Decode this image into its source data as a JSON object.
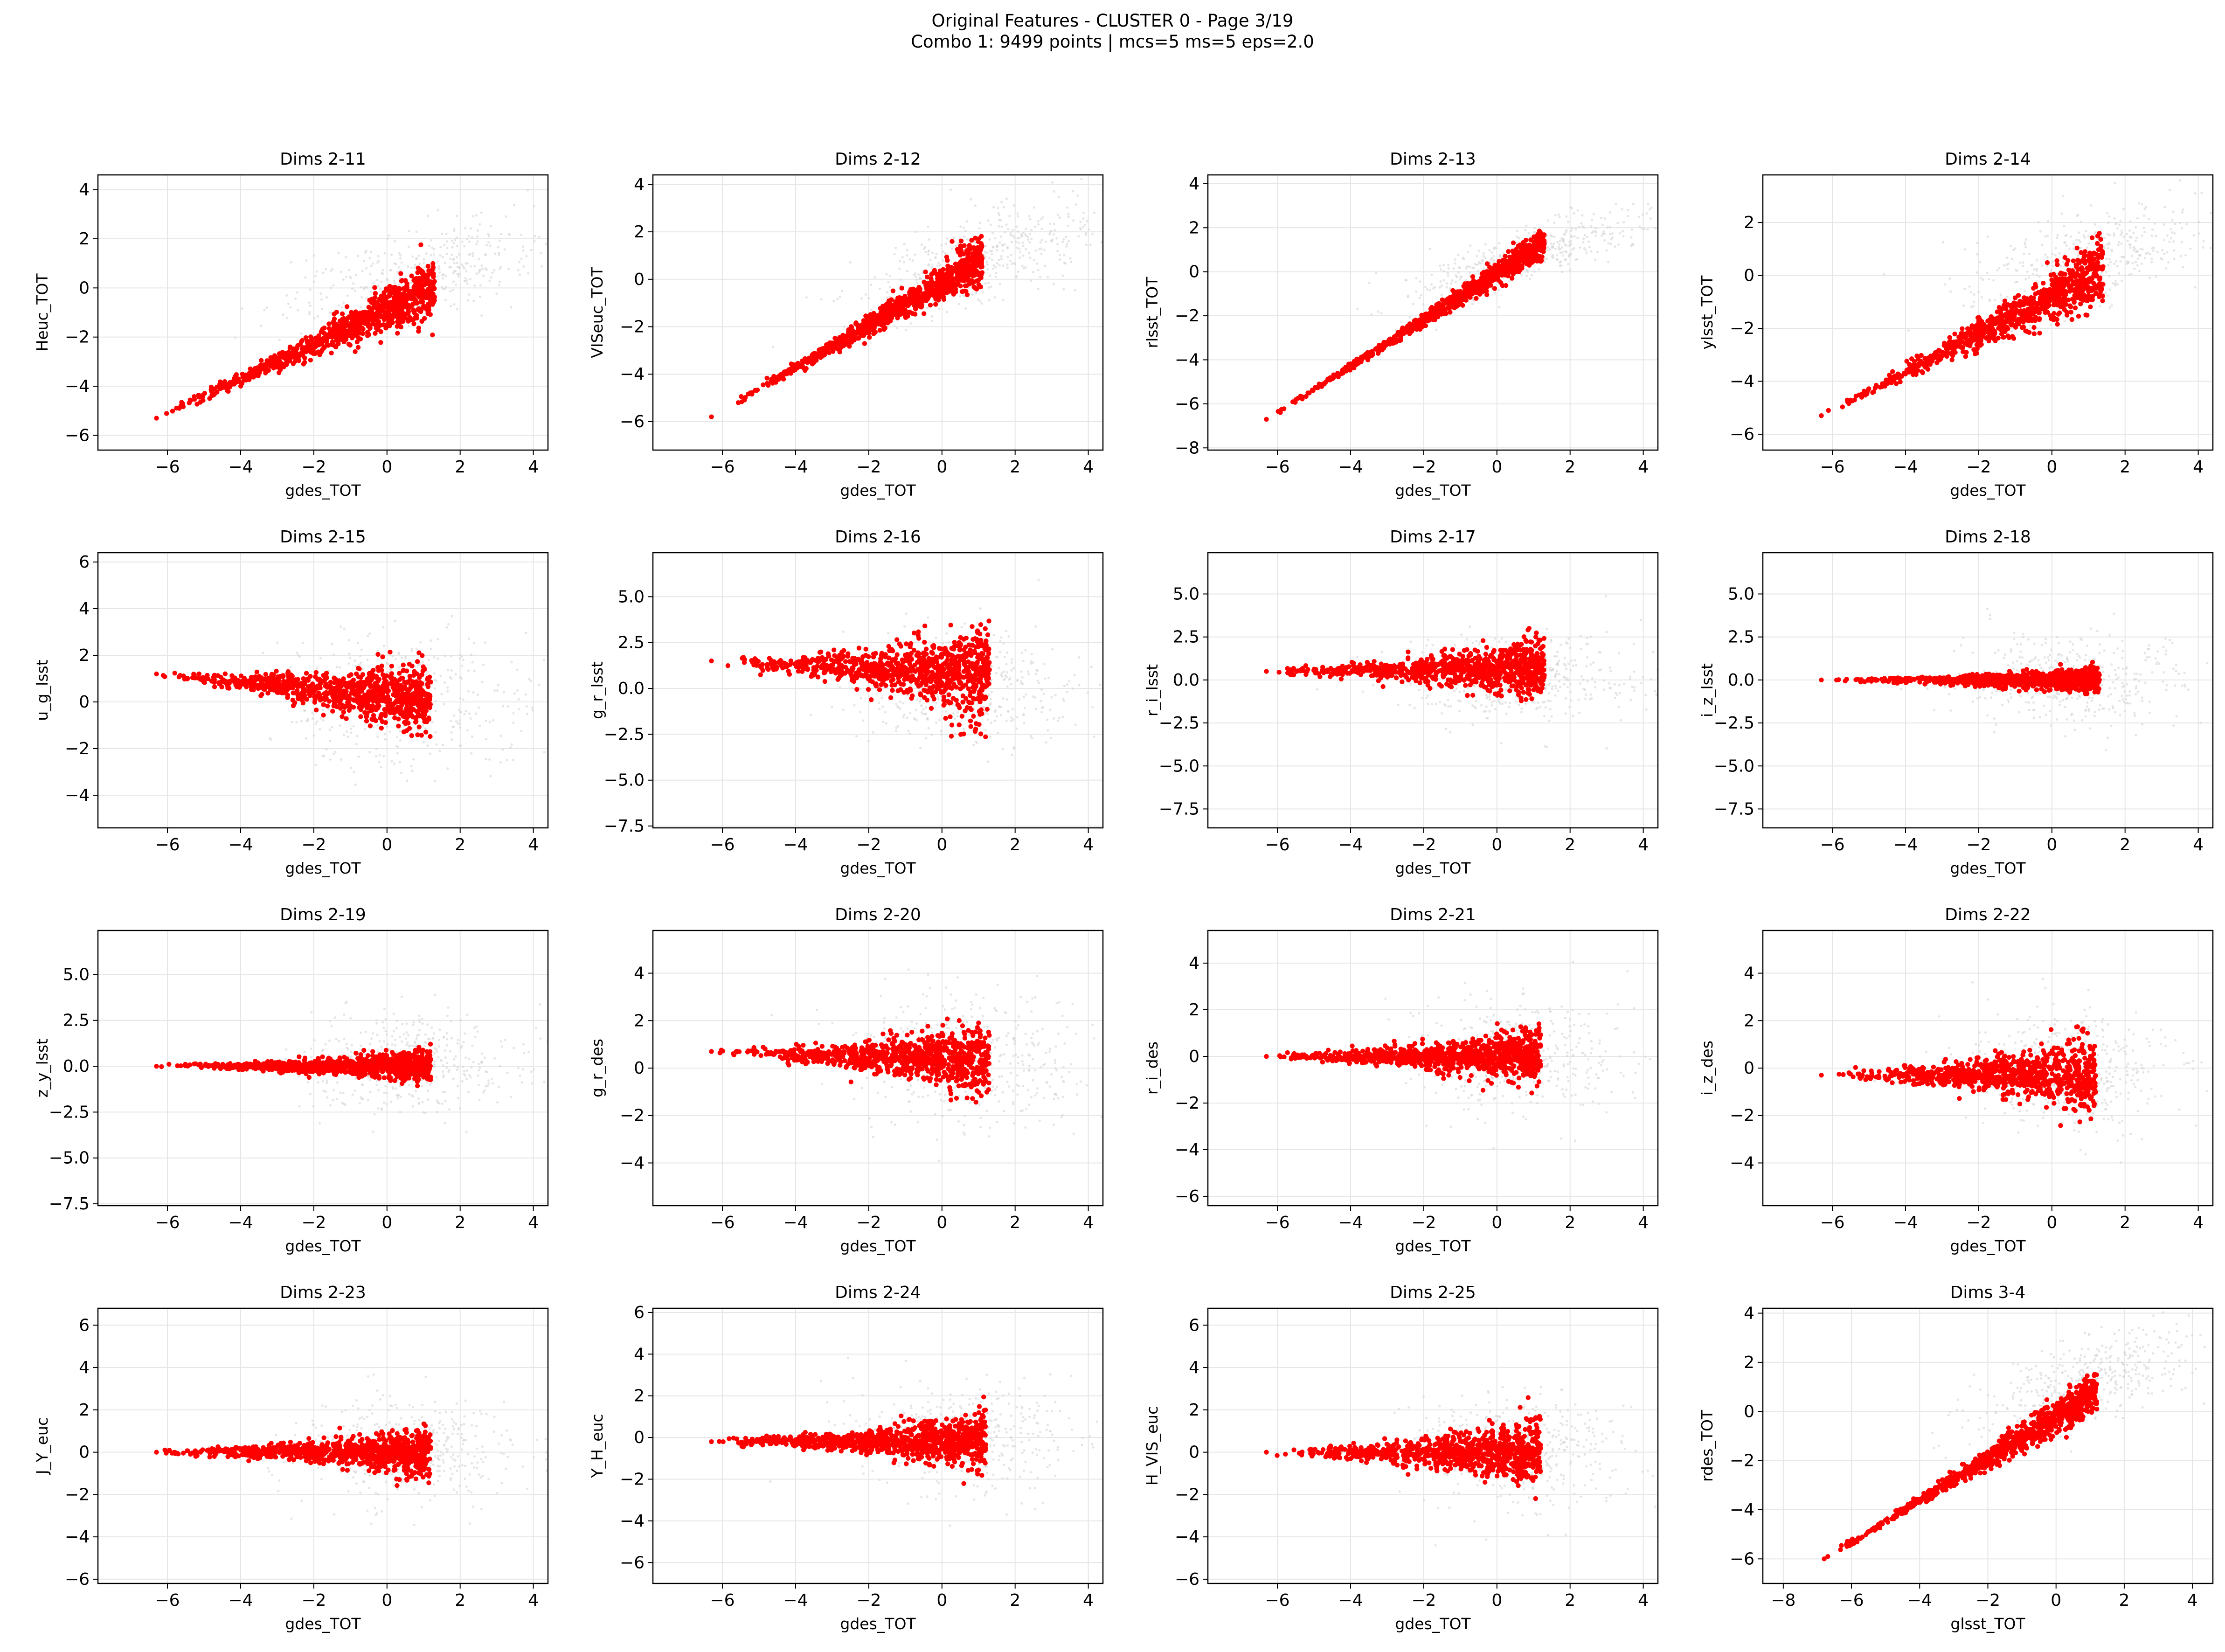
{
  "figure": {
    "title_line1": "Original Features - CLUSTER 0 - Page 3/19",
    "title_line2": "Combo 1: 9499 points | mcs=5 ms=5 eps=2.0"
  },
  "colors": {
    "cluster": "#ff0000",
    "background_points": "#d3d3d3",
    "grid": "#e6e6e6",
    "axes": "#000000"
  },
  "chart_data": [
    {
      "type": "scatter",
      "title": "Dims 2-11",
      "xlabel": "gdes_TOT",
      "ylabel": "Heuc_TOT",
      "xlim": [
        -7.9,
        4.4
      ],
      "ylim": [
        -6.6,
        4.6
      ],
      "xticks": [
        "-6",
        "-4",
        "-2",
        "0",
        "2",
        "4"
      ],
      "yticks": [
        "-6",
        "-4",
        "-2",
        "0",
        "2",
        "4"
      ],
      "cluster": {
        "lead": [
          -6.3,
          -5.3
        ],
        "slope": 0.7,
        "spread": 0.55,
        "x_end": 1.3
      },
      "background": {
        "x_center": 0.8,
        "y_center": 0.5,
        "x_spread": 1.8,
        "y_spread": 0.9
      }
    },
    {
      "type": "scatter",
      "title": "Dims 2-12",
      "xlabel": "gdes_TOT",
      "ylabel": "VISeuc_TOT",
      "xlim": [
        -7.9,
        4.4
      ],
      "ylim": [
        -7.2,
        4.4
      ],
      "xticks": [
        "-6",
        "-4",
        "-2",
        "0",
        "2",
        "4"
      ],
      "yticks": [
        "-6",
        "-4",
        "-2",
        "0",
        "2",
        "4"
      ],
      "cluster": {
        "lead": [
          -6.3,
          -5.8
        ],
        "slope": 0.9,
        "spread": 0.45,
        "x_end": 1.1
      },
      "background": {
        "x_center": 1.0,
        "y_center": 0.8,
        "x_spread": 1.7,
        "y_spread": 0.9
      }
    },
    {
      "type": "scatter",
      "title": "Dims 2-13",
      "xlabel": "gdes_TOT",
      "ylabel": "rlsst_TOT",
      "xlim": [
        -7.9,
        4.4
      ],
      "ylim": [
        -8.1,
        4.4
      ],
      "xticks": [
        "-6",
        "-4",
        "-2",
        "0",
        "2",
        "4"
      ],
      "yticks": [
        "-8",
        "-6",
        "-4",
        "-2",
        "0",
        "2",
        "4"
      ],
      "cluster": {
        "lead": [
          -6.3,
          -6.7
        ],
        "slope": 1.05,
        "spread": 0.3,
        "x_end": 1.3
      },
      "background": {
        "x_center": 0.9,
        "y_center": 0.8,
        "x_spread": 1.7,
        "y_spread": 0.6
      }
    },
    {
      "type": "scatter",
      "title": "Dims 2-14",
      "xlabel": "gdes_TOT",
      "ylabel": "ylsst_TOT",
      "xlim": [
        -7.9,
        4.4
      ],
      "ylim": [
        -6.6,
        3.8
      ],
      "xticks": [
        "-6",
        "-4",
        "-2",
        "0",
        "2",
        "4"
      ],
      "yticks": [
        "-6",
        "-4",
        "-2",
        "0",
        "2"
      ],
      "cluster": {
        "lead": [
          -6.3,
          -5.3
        ],
        "slope": 0.72,
        "spread": 0.55,
        "x_end": 1.4
      },
      "background": {
        "x_center": 1.0,
        "y_center": 0.6,
        "x_spread": 1.8,
        "y_spread": 0.9
      }
    },
    {
      "type": "scatter",
      "title": "Dims 2-15",
      "xlabel": "gdes_TOT",
      "ylabel": "u_g_lsst",
      "xlim": [
        -7.9,
        4.4
      ],
      "ylim": [
        -5.4,
        6.4
      ],
      "xticks": [
        "-6",
        "-4",
        "-2",
        "0",
        "2",
        "4"
      ],
      "yticks": [
        "-4",
        "-2",
        "0",
        "2",
        "4",
        "6"
      ],
      "cluster": {
        "lead": [
          -6.3,
          1.2
        ],
        "slope": -0.15,
        "spread": 0.7,
        "x_end": 1.2
      },
      "background": {
        "x_center": 0.4,
        "y_center": 0.0,
        "x_spread": 1.6,
        "y_spread": 1.5
      }
    },
    {
      "type": "scatter",
      "title": "Dims 2-16",
      "xlabel": "gdes_TOT",
      "ylabel": "g_r_lsst",
      "xlim": [
        -7.9,
        4.4
      ],
      "ylim": [
        -7.6,
        7.4
      ],
      "xticks": [
        "-6",
        "-4",
        "-2",
        "0",
        "2",
        "4"
      ],
      "yticks": [
        "-7.5",
        "-5.0",
        "-2.5",
        "0.0",
        "2.5",
        "5.0"
      ],
      "cluster": {
        "lead": [
          -6.3,
          1.5
        ],
        "slope": -0.1,
        "spread": 1.1,
        "x_end": 1.3
      },
      "background": {
        "x_center": 0.6,
        "y_center": 0.0,
        "x_spread": 1.6,
        "y_spread": 1.5
      }
    },
    {
      "type": "scatter",
      "title": "Dims 2-17",
      "xlabel": "gdes_TOT",
      "ylabel": "r_i_lsst",
      "xlim": [
        -7.9,
        4.4
      ],
      "ylim": [
        -8.6,
        7.4
      ],
      "xticks": [
        "-6",
        "-4",
        "-2",
        "0",
        "2",
        "4"
      ],
      "yticks": [
        "-7.5",
        "-5.0",
        "-2.5",
        "0.0",
        "2.5",
        "5.0"
      ],
      "cluster": {
        "lead": [
          -6.3,
          0.5
        ],
        "slope": 0.02,
        "spread": 0.8,
        "x_end": 1.3
      },
      "background": {
        "x_center": 0.6,
        "y_center": 0.0,
        "x_spread": 1.6,
        "y_spread": 1.3
      }
    },
    {
      "type": "scatter",
      "title": "Dims 2-18",
      "xlabel": "gdes_TOT",
      "ylabel": "i_z_lsst",
      "xlim": [
        -7.9,
        4.4
      ],
      "ylim": [
        -8.6,
        7.4
      ],
      "xticks": [
        "-6",
        "-4",
        "-2",
        "0",
        "2",
        "4"
      ],
      "yticks": [
        "-7.5",
        "-5.0",
        "-2.5",
        "0.0",
        "2.5",
        "5.0"
      ],
      "cluster": {
        "lead": [
          -6.3,
          0.0
        ],
        "slope": 0.0,
        "spread": 0.35,
        "x_end": 1.3
      },
      "background": {
        "x_center": 0.6,
        "y_center": 0.0,
        "x_spread": 1.5,
        "y_spread": 1.3
      }
    },
    {
      "type": "scatter",
      "title": "Dims 2-19",
      "xlabel": "gdes_TOT",
      "ylabel": "z_y_lsst",
      "xlim": [
        -7.9,
        4.4
      ],
      "ylim": [
        -7.6,
        7.4
      ],
      "xticks": [
        "-6",
        "-4",
        "-2",
        "0",
        "2",
        "4"
      ],
      "yticks": [
        "-7.5",
        "-5.0",
        "-2.5",
        "0.0",
        "2.5",
        "5.0"
      ],
      "cluster": {
        "lead": [
          -6.3,
          0.0
        ],
        "slope": 0.0,
        "spread": 0.4,
        "x_end": 1.2
      },
      "background": {
        "x_center": 0.6,
        "y_center": 0.0,
        "x_spread": 1.5,
        "y_spread": 1.4
      }
    },
    {
      "type": "scatter",
      "title": "Dims 2-20",
      "xlabel": "gdes_TOT",
      "ylabel": "g_r_des",
      "xlim": [
        -7.9,
        4.4
      ],
      "ylim": [
        -5.8,
        5.8
      ],
      "xticks": [
        "-6",
        "-4",
        "-2",
        "0",
        "2",
        "4"
      ],
      "yticks": [
        "-4",
        "-2",
        "0",
        "2",
        "4"
      ],
      "cluster": {
        "lead": [
          -6.3,
          0.7
        ],
        "slope": -0.05,
        "spread": 0.65,
        "x_end": 1.3
      },
      "background": {
        "x_center": 0.8,
        "y_center": 0.3,
        "x_spread": 1.7,
        "y_spread": 1.4
      }
    },
    {
      "type": "scatter",
      "title": "Dims 2-21",
      "xlabel": "gdes_TOT",
      "ylabel": "r_i_des",
      "xlim": [
        -7.9,
        4.4
      ],
      "ylim": [
        -6.4,
        5.4
      ],
      "xticks": [
        "-6",
        "-4",
        "-2",
        "0",
        "2",
        "4"
      ],
      "yticks": [
        "-6",
        "-4",
        "-2",
        "0",
        "2",
        "4"
      ],
      "cluster": {
        "lead": [
          -6.3,
          0.0
        ],
        "slope": 0.0,
        "spread": 0.55,
        "x_end": 1.2
      },
      "background": {
        "x_center": 0.6,
        "y_center": 0.0,
        "x_spread": 1.5,
        "y_spread": 1.2
      }
    },
    {
      "type": "scatter",
      "title": "Dims 2-22",
      "xlabel": "gdes_TOT",
      "ylabel": "i_z_des",
      "xlim": [
        -7.9,
        4.4
      ],
      "ylim": [
        -5.8,
        5.8
      ],
      "xticks": [
        "-6",
        "-4",
        "-2",
        "0",
        "2",
        "4"
      ],
      "yticks": [
        "-4",
        "-2",
        "0",
        "2",
        "4"
      ],
      "cluster": {
        "lead": [
          -6.3,
          -0.3
        ],
        "slope": 0.0,
        "spread": 0.7,
        "x_end": 1.2
      },
      "background": {
        "x_center": 0.6,
        "y_center": 0.0,
        "x_spread": 1.5,
        "y_spread": 1.3
      }
    },
    {
      "type": "scatter",
      "title": "Dims 2-23",
      "xlabel": "gdes_TOT",
      "ylabel": "J_Y_euc",
      "xlim": [
        -7.9,
        4.4
      ],
      "ylim": [
        -6.2,
        6.8
      ],
      "xticks": [
        "-6",
        "-4",
        "-2",
        "0",
        "2",
        "4"
      ],
      "yticks": [
        "-6",
        "-4",
        "-2",
        "0",
        "2",
        "4",
        "6"
      ],
      "cluster": {
        "lead": [
          -6.3,
          0.0
        ],
        "slope": 0.0,
        "spread": 0.55,
        "x_end": 1.2
      },
      "background": {
        "x_center": 0.6,
        "y_center": 0.0,
        "x_spread": 1.5,
        "y_spread": 1.2
      }
    },
    {
      "type": "scatter",
      "title": "Dims 2-24",
      "xlabel": "gdes_TOT",
      "ylabel": "Y_H_euc",
      "xlim": [
        -7.9,
        4.4
      ],
      "ylim": [
        -7.0,
        6.2
      ],
      "xticks": [
        "-6",
        "-4",
        "-2",
        "0",
        "2",
        "4"
      ],
      "yticks": [
        "-6",
        "-4",
        "-2",
        "0",
        "2",
        "4",
        "6"
      ],
      "cluster": {
        "lead": [
          -6.3,
          -0.2
        ],
        "slope": 0.0,
        "spread": 0.6,
        "x_end": 1.2
      },
      "background": {
        "x_center": 0.6,
        "y_center": 0.0,
        "x_spread": 1.6,
        "y_spread": 1.3
      }
    },
    {
      "type": "scatter",
      "title": "Dims 2-25",
      "xlabel": "gdes_TOT",
      "ylabel": "H_VIS_euc",
      "xlim": [
        -7.9,
        4.4
      ],
      "ylim": [
        -6.2,
        6.8
      ],
      "xticks": [
        "-6",
        "-4",
        "-2",
        "0",
        "2",
        "4"
      ],
      "yticks": [
        "-6",
        "-4",
        "-2",
        "0",
        "2",
        "4",
        "6"
      ],
      "cluster": {
        "lead": [
          -6.3,
          0.0
        ],
        "slope": 0.0,
        "spread": 0.7,
        "x_end": 1.2
      },
      "background": {
        "x_center": 0.6,
        "y_center": 0.0,
        "x_spread": 1.6,
        "y_spread": 1.3
      }
    },
    {
      "type": "scatter",
      "title": "Dims 3-4",
      "xlabel": "glsst_TOT",
      "ylabel": "rdes_TOT",
      "xlim": [
        -8.6,
        4.6
      ],
      "ylim": [
        -7.0,
        4.2
      ],
      "xticks": [
        "-8",
        "-6",
        "-4",
        "-2",
        "0",
        "2",
        "4"
      ],
      "yticks": [
        "-6",
        "-4",
        "-2",
        "0",
        "2",
        "4"
      ],
      "cluster": {
        "lead": [
          -6.8,
          -6.0
        ],
        "slope": 0.85,
        "spread": 0.4,
        "x_end": 1.2
      },
      "background": {
        "x_center": 0.8,
        "y_center": 1.2,
        "x_spread": 1.6,
        "y_spread": 0.8
      }
    }
  ]
}
